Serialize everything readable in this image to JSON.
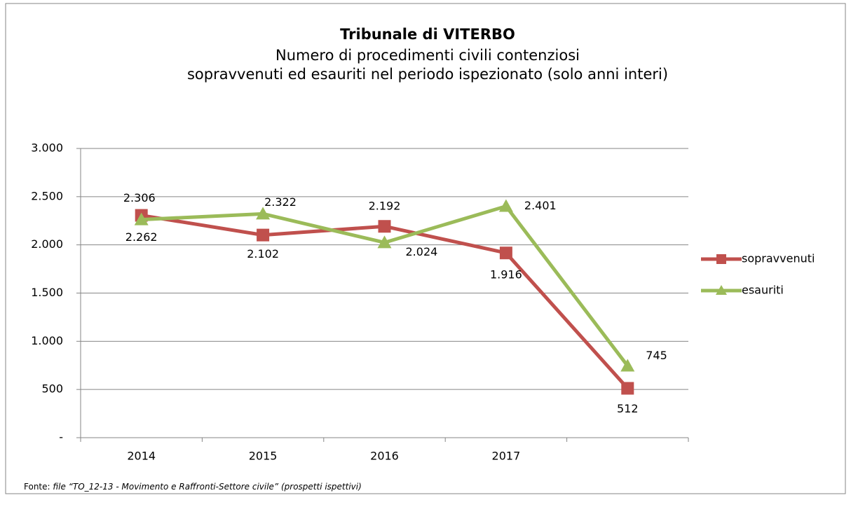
{
  "chart_data": {
    "type": "line",
    "title": "Tribunale di VITERBO",
    "subtitle": [
      "Numero di procedimenti civili contenziosi",
      "sopravvenuti ed esauriti nel periodo ispezionato (solo anni interi)"
    ],
    "categories": [
      "2014",
      "2015",
      "2016",
      "2017",
      null
    ],
    "series": [
      {
        "name": "sopravvenuti",
        "color": "#c0504d",
        "marker": "square",
        "values": [
          2306,
          2102,
          2192,
          1916,
          512
        ],
        "value_labels": [
          "2.306",
          "2.102",
          "2.192",
          "1.916",
          "512"
        ]
      },
      {
        "name": "esauriti",
        "color": "#9bbb59",
        "marker": "triangle",
        "values": [
          2262,
          2322,
          2024,
          2401,
          745
        ],
        "value_labels": [
          "2.262",
          "2.322",
          "2.024",
          "2.401",
          "745"
        ]
      }
    ],
    "ylim": [
      0,
      3000
    ],
    "yticks": [
      {
        "value": 0,
        "label": "-"
      },
      500,
      {
        "value": 1000,
        "label": "1.000"
      },
      {
        "value": 1500,
        "label": "1.500"
      },
      {
        "value": 2000,
        "label": "2.000"
      },
      {
        "value": 2500,
        "label": "2.500"
      },
      {
        "value": 3000,
        "label": "3.000"
      }
    ],
    "grid": true,
    "legend": "right",
    "source_prefix": "Fonte:",
    "source": "file “TO_12-13 - Movimento e Raffronti-Settore civile” (prospetti ispettivi)"
  }
}
